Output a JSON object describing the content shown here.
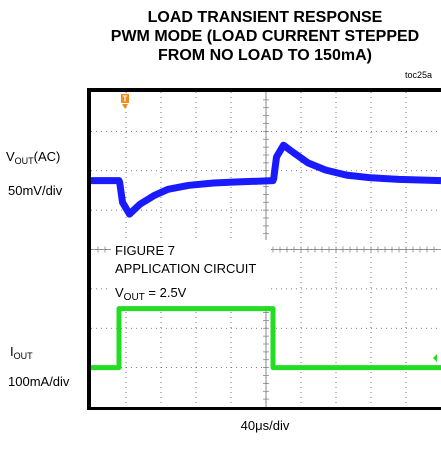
{
  "chart_data": {
    "type": "line",
    "title": [
      "LOAD TRANSIENT RESPONSE",
      "PWM MODE (LOAD CURRENT STEPPED",
      "FROM NO LOAD TO 150mA)"
    ],
    "figure_code": "toc25a",
    "xlabel": "40μs/div",
    "grid": true,
    "trigger_marker": "T",
    "annotation": {
      "line1": "FIGURE 7",
      "line2": "APPLICATION CIRCUIT",
      "vout_main": "V",
      "vout_sub": "OUT",
      "vout_value": " = 2.5V"
    },
    "series": [
      {
        "label_main": "V",
        "label_sub": "OUT",
        "label_suffix": "(AC)",
        "scale": "50mV/div",
        "color": "#1a1aff",
        "x": [
          0,
          0.8,
          0.82,
          0.9,
          1.1,
          1.4,
          1.8,
          2.2,
          2.8,
          3.5,
          4.3,
          5.2,
          5.22,
          5.3,
          5.5,
          5.8,
          6.2,
          6.7,
          7.3,
          8.0,
          8.8,
          10.0
        ],
        "y": [
          0,
          0,
          -0.05,
          -0.55,
          -0.85,
          -0.6,
          -0.38,
          -0.22,
          -0.12,
          -0.06,
          -0.03,
          0,
          0.05,
          0.6,
          0.9,
          0.7,
          0.45,
          0.27,
          0.14,
          0.07,
          0.03,
          0
        ]
      },
      {
        "label_main": "I",
        "label_sub": "OUT",
        "label_suffix": "",
        "scale": "100mA/div",
        "color": "#22dd22",
        "x": [
          0,
          0.8,
          0.8,
          5.2,
          5.2,
          10.0
        ],
        "y": [
          0,
          0,
          150,
          150,
          0,
          0
        ]
      }
    ]
  }
}
